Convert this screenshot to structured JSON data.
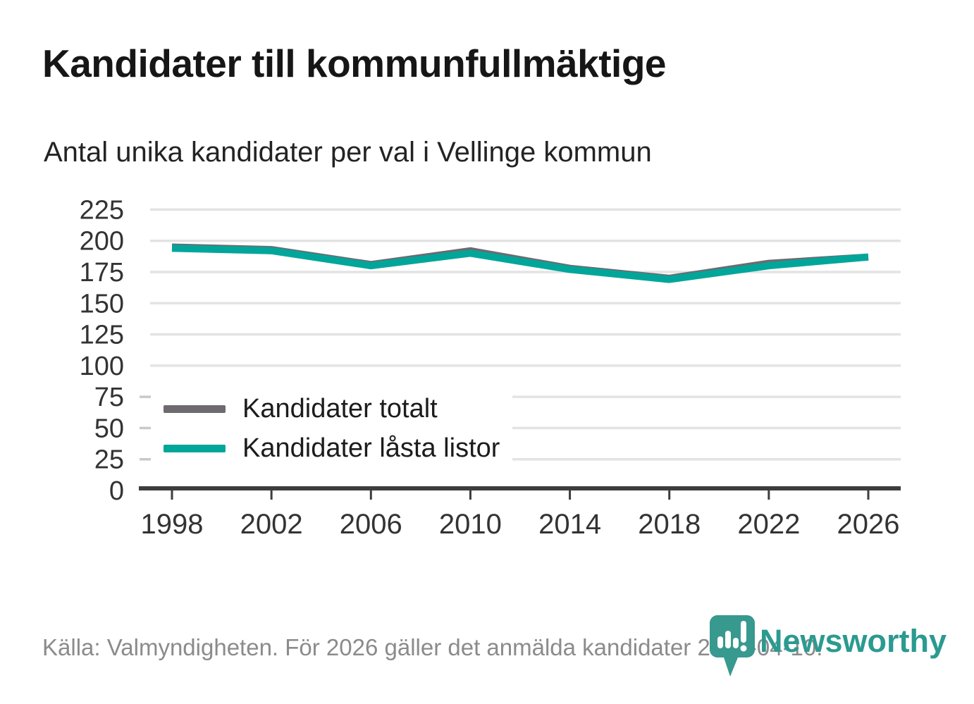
{
  "branding": {
    "logo_text": "Newsworthy",
    "logo_color": "#2b9a90",
    "icon_color": "#38998f"
  },
  "chart_data": {
    "type": "line",
    "title": "Kandidater till kommunfullmäktige",
    "subtitle": "Antal unika kandidater per val i Vellinge kommun",
    "source": "Källa: Valmyndigheten. För 2026 gäller det anmälda kandidater 2026-04-10.",
    "x": [
      1998,
      2002,
      2006,
      2010,
      2014,
      2018,
      2022,
      2026
    ],
    "series": [
      {
        "name": "Kandidater totalt",
        "color": "#6e6a70",
        "values": [
          195,
          193,
          181,
          192,
          178,
          170,
          182,
          187
        ]
      },
      {
        "name": "Kandidater låsta listor",
        "color": "#00a69a",
        "values": [
          194,
          192,
          180,
          190,
          177,
          169,
          180,
          187
        ]
      }
    ],
    "ylim": [
      0,
      225
    ],
    "yticks": [
      0,
      25,
      50,
      75,
      100,
      125,
      150,
      175,
      200,
      225
    ],
    "grid": true,
    "legend_position": "inside-bottom-left",
    "grid_color": "#e3e3e3",
    "axis_color": "#3d3d3d",
    "tick_label_color": "#333333"
  }
}
